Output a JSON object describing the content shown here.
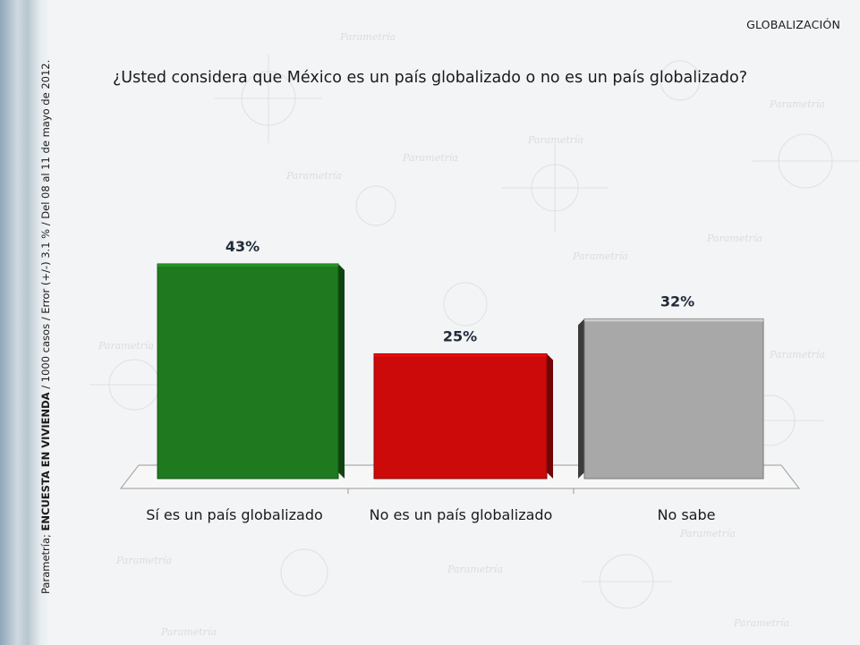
{
  "section_tag": "GLOBALIZACIÓN",
  "question": "¿Usted considera que México es un país globalizado o no es un país globalizado?",
  "side_note": {
    "prefix": "Parametría; ",
    "bold": "ENCUESTA EN VIVIENDA",
    "suffix": " / 1000 casos / Error (+/-) 3.1 % / Del 08 al 11 de mayo de 2012."
  },
  "watermark": "Parametría",
  "chart_data": {
    "type": "bar",
    "categories": [
      "Sí es un país globalizado",
      "No es un país globalizado",
      "No sabe"
    ],
    "values": [
      43,
      25,
      32
    ],
    "value_labels": [
      "43%",
      "25%",
      "32%"
    ],
    "colors": [
      "#1f7a1f",
      "#cc0a0a",
      "#a8a8a8"
    ],
    "ylim": [
      0,
      50
    ],
    "grid": false,
    "legend": "none"
  }
}
